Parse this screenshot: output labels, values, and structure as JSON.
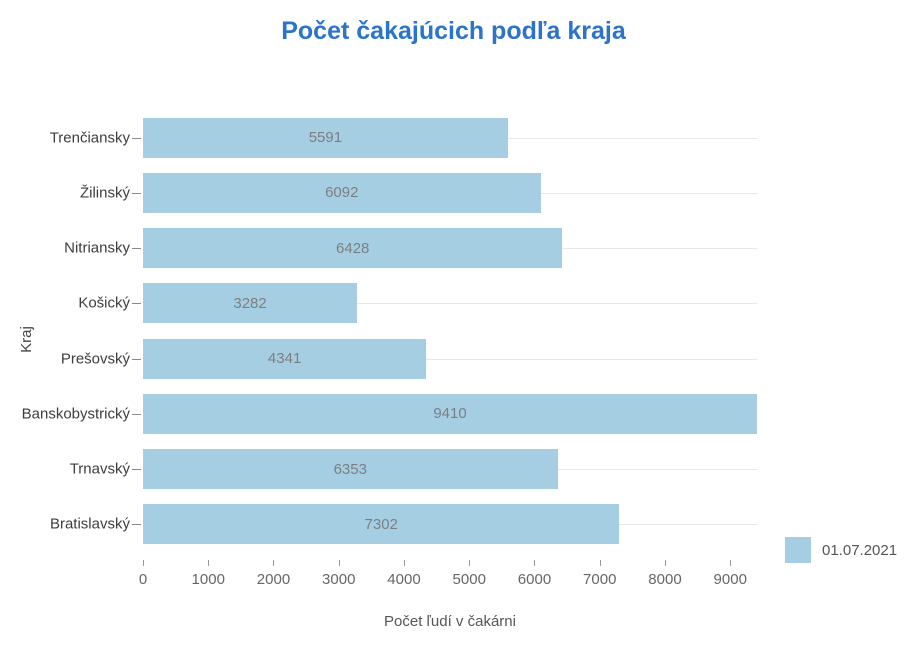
{
  "chart_data": {
    "type": "bar",
    "orientation": "horizontal",
    "title": "Počet čakajúcich podľa kraja",
    "xlabel": "Počet ľudí v čakárni",
    "ylabel": "Kraj",
    "categories": [
      "Trenčiansky",
      "Žilinský",
      "Nitriansky",
      "Košický",
      "Prešovský",
      "Banskobystrický",
      "Trnavský",
      "Bratislavský"
    ],
    "values": [
      5591,
      6092,
      6428,
      3282,
      4341,
      9410,
      6353,
      7302
    ],
    "xlim": [
      0,
      9410
    ],
    "x_ticks": [
      0,
      1000,
      2000,
      3000,
      4000,
      5000,
      6000,
      7000,
      8000,
      9000
    ],
    "grid": "horizontal gridline per category row, no vertical gridlines",
    "legend_position": "bottom-right",
    "legend": [
      {
        "label": "01.07.2021",
        "color": "#a6cee3"
      }
    ],
    "colors": {
      "bar": "#a6cee3",
      "title": "#2b74c9",
      "value_label": "#7b7f83",
      "category_label": "#3d3d3d",
      "tick_label": "#666666",
      "axis_title": "#555555",
      "gridline": "#e7e7e7"
    }
  }
}
